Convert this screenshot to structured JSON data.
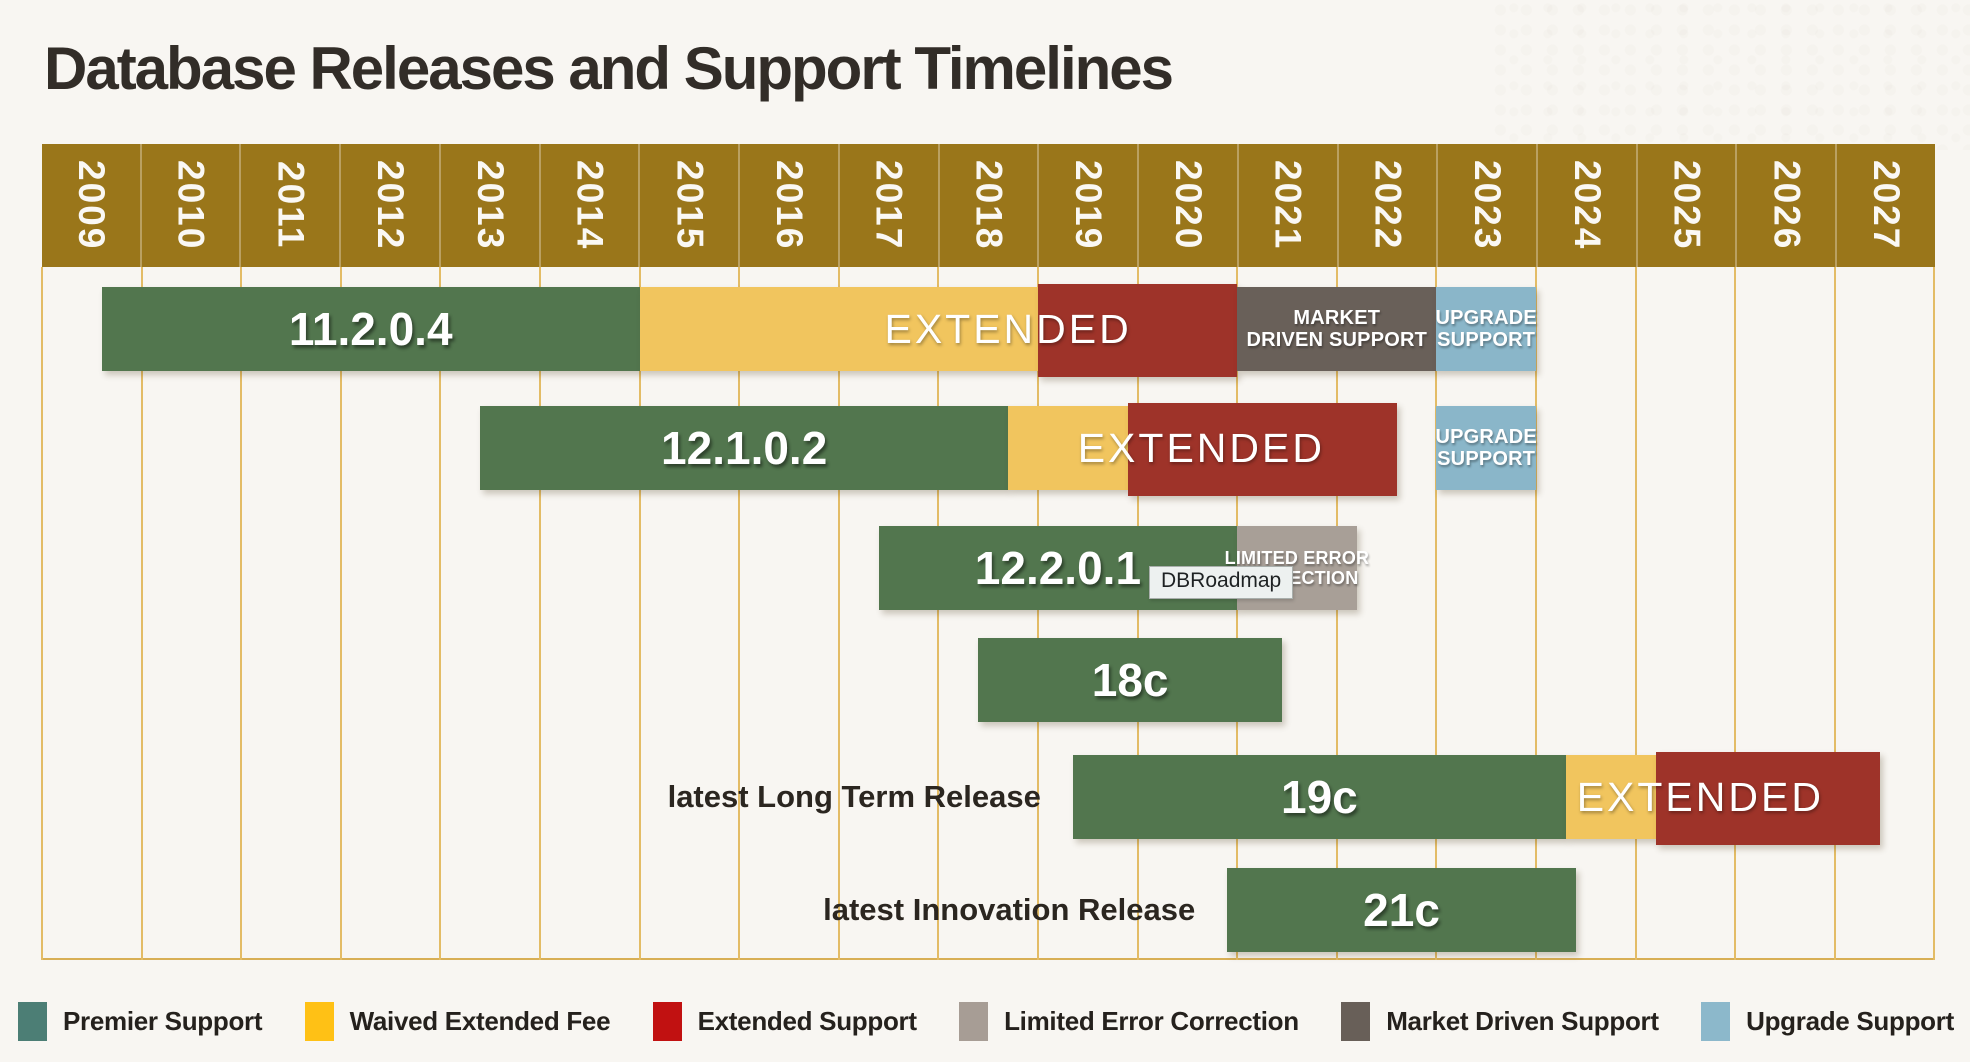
{
  "tooltip": {
    "text": "DBRoadmap"
  },
  "chart_data": {
    "type": "gantt",
    "title": "Database Releases and Support Timelines",
    "axis": {
      "unit": "year",
      "tick_labels": [
        "2009",
        "2010",
        "2011",
        "2012",
        "2013",
        "2014",
        "2015",
        "2016",
        "2017",
        "2018",
        "2019",
        "2020",
        "2021",
        "2022",
        "2023",
        "2024",
        "2025",
        "2026",
        "2027"
      ],
      "grid": true
    },
    "colors": {
      "premier": "#52764E",
      "waived": "#F1C55E",
      "extended": "#9E3329",
      "market": "#696059",
      "limited": "#A89F97",
      "upgrade": "#8AB6C9"
    },
    "legend_colors": {
      "premier": "#4C7E75",
      "waived": "#FFC115",
      "extended": "#C11111",
      "limited": "#A79D95",
      "market": "#685F58",
      "upgrade": "#8CB8CB"
    },
    "rows": [
      {
        "name": "11.2.0.4",
        "side_label": "",
        "segments": [
          {
            "type": "premier",
            "start": 2009.6,
            "end": 2015.0
          },
          {
            "type": "waived",
            "start": 2015.0,
            "end": 2019.0
          },
          {
            "type": "extended",
            "start": 2019.0,
            "end": 2021.0
          },
          {
            "type": "market",
            "start": 2021.0,
            "end": 2023.0,
            "lines": [
              "MARKET",
              "DRIVEN SUPPORT"
            ]
          },
          {
            "type": "upgrade",
            "start": 2023.0,
            "end": 2024.0,
            "lines": [
              "UPGRADE",
              "SUPPORT"
            ]
          }
        ],
        "overlays": [
          {
            "text": "EXTENDED",
            "center": 2018.7
          }
        ]
      },
      {
        "name": "12.1.0.2",
        "side_label": "",
        "segments": [
          {
            "type": "premier",
            "start": 2013.4,
            "end": 2018.7
          },
          {
            "type": "waived",
            "start": 2018.7,
            "end": 2019.9
          },
          {
            "type": "extended",
            "start": 2019.9,
            "end": 2022.6
          },
          {
            "type": "upgrade",
            "start": 2023.0,
            "end": 2024.0,
            "lines": [
              "UPGRADE",
              "SUPPORT"
            ],
            "detached": true
          }
        ],
        "overlays": [
          {
            "text": "EXTENDED",
            "center": 2020.64
          }
        ]
      },
      {
        "name": "12.2.0.1",
        "side_label": "",
        "segments": [
          {
            "type": "premier",
            "start": 2017.4,
            "end": 2021.0
          },
          {
            "type": "limited",
            "start": 2021.0,
            "end": 2022.2,
            "lines": [
              "LIMITED ERROR",
              "CORRECTION"
            ]
          }
        ],
        "overlays": []
      },
      {
        "name": "18c",
        "side_label": "",
        "segments": [
          {
            "type": "premier",
            "start": 2018.4,
            "end": 2021.45
          }
        ],
        "overlays": []
      },
      {
        "name": "19c",
        "side_label": "latest Long Term Release",
        "segments": [
          {
            "type": "premier",
            "start": 2019.35,
            "end": 2024.3
          },
          {
            "type": "waived",
            "start": 2024.3,
            "end": 2025.2
          },
          {
            "type": "extended",
            "start": 2025.2,
            "end": 2027.45
          }
        ],
        "overlays": [
          {
            "text": "EXTENDED",
            "center": 2025.65
          }
        ]
      },
      {
        "name": "21c",
        "side_label": "latest Innovation Release",
        "segments": [
          {
            "type": "premier",
            "start": 2020.9,
            "end": 2024.4
          }
        ],
        "overlays": []
      }
    ],
    "legend": [
      {
        "key": "premier",
        "label": "Premier Support"
      },
      {
        "key": "waived",
        "label": "Waived Extended Fee"
      },
      {
        "key": "extended",
        "label": "Extended Support"
      },
      {
        "key": "limited",
        "label": "Limited Error Correction"
      },
      {
        "key": "market",
        "label": "Market Driven Support"
      },
      {
        "key": "upgrade",
        "label": "Upgrade Support"
      }
    ]
  }
}
